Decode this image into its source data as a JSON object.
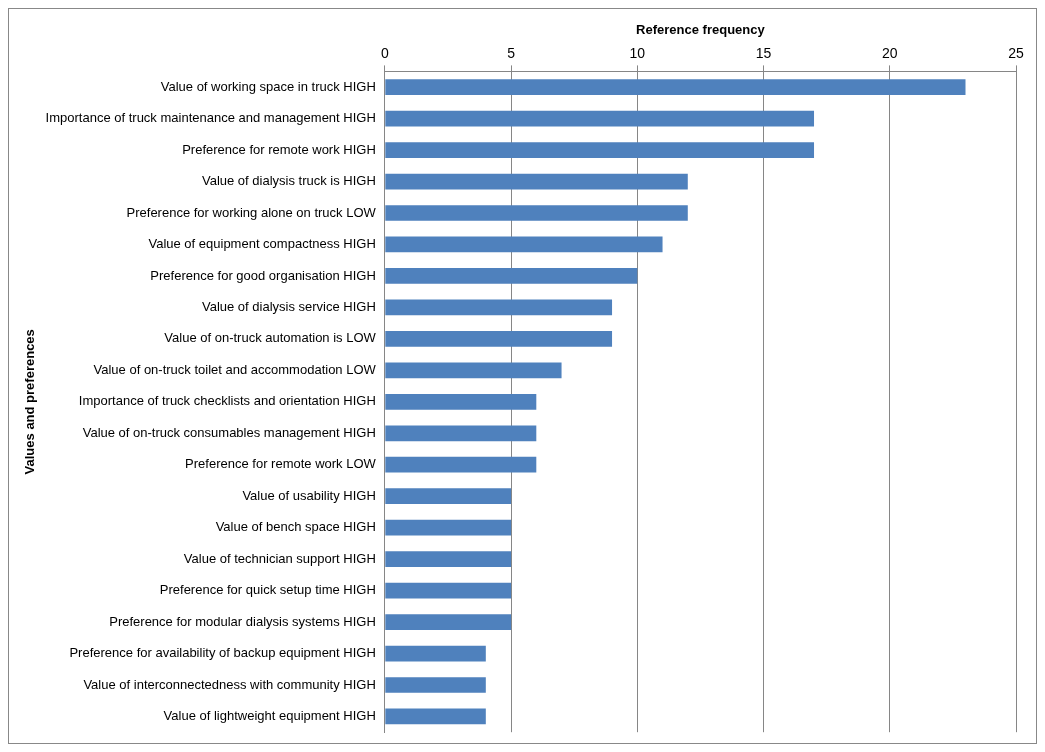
{
  "chart_data": {
    "type": "bar",
    "orientation": "horizontal",
    "xlabel": "Reference frequency",
    "ylabel": "Values and preferences",
    "categories": [
      "Value of working space in truck HIGH",
      "Importance of truck maintenance and management HIGH",
      "Preference for remote work HIGH",
      "Value of dialysis truck is HIGH",
      "Preference for working alone on truck LOW",
      "Value of equipment compactness HIGH",
      "Preference for good organisation HIGH",
      "Value of dialysis service HIGH",
      "Value of on-truck automation is LOW",
      "Value of on-truck toilet and accommodation LOW",
      "Importance of truck checklists and orientation HIGH",
      "Value of on-truck consumables management HIGH",
      "Preference for remote work LOW",
      "Value of usability HIGH",
      "Value of bench space HIGH",
      "Value of technician support HIGH",
      "Preference for quick setup time HIGH",
      "Preference for modular dialysis systems HIGH",
      "Preference for availability of backup equipment HIGH",
      "Value of interconnectedness with community HIGH",
      "Value of lightweight equipment HIGH"
    ],
    "values": [
      23,
      17,
      17,
      12,
      12,
      11,
      10,
      9,
      9,
      7,
      6,
      6,
      6,
      5,
      5,
      5,
      5,
      5,
      4,
      4,
      4
    ],
    "color": "#4f81bd",
    "xlim": [
      0,
      25
    ],
    "xticks": [
      0,
      5,
      10,
      15,
      20,
      25
    ],
    "grid": "x",
    "legend": false
  }
}
